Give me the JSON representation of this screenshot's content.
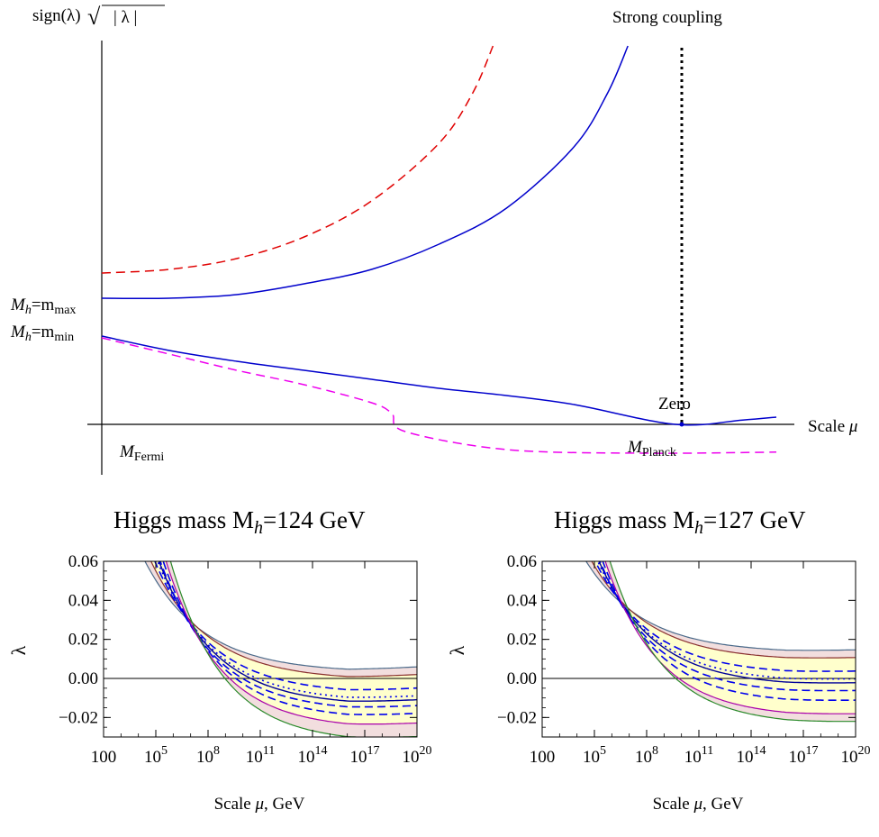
{
  "chart_data": [
    {
      "type": "line",
      "ylabel": "sign(λ)√|λ|",
      "xlabel": "Scale μ",
      "annotations": {
        "strong_coupling": "Strong coupling",
        "zero": "Zero",
        "mh_max_left": "M",
        "mh_max_sub": "h",
        "mh_max_eq": "=m",
        "mh_max_subscript": "max",
        "mh_min_left": "M",
        "mh_min_sub": "h",
        "mh_min_eq": "=m",
        "mh_min_subscript": "min",
        "fermi_main": "M",
        "fermi_sub": "Fermi",
        "planck_main": "M",
        "planck_sub": "Planck"
      },
      "series": [
        {
          "style": "dashed",
          "color": "#e00000",
          "x": [
            0.0,
            0.1,
            0.2,
            0.3,
            0.4,
            0.5,
            0.55,
            0.58
          ],
          "y": [
            0.42,
            0.43,
            0.46,
            0.52,
            0.62,
            0.78,
            0.92,
            1.05
          ]
        },
        {
          "style": "solid",
          "color": "#0000cc",
          "x": [
            0.0,
            0.1,
            0.2,
            0.3,
            0.4,
            0.5,
            0.6,
            0.7,
            0.75,
            0.78
          ],
          "y": [
            0.35,
            0.35,
            0.36,
            0.39,
            0.43,
            0.5,
            0.6,
            0.77,
            0.92,
            1.05
          ]
        },
        {
          "style": "solid",
          "color": "#0000cc",
          "x": [
            0.0,
            0.1,
            0.2,
            0.3,
            0.4,
            0.5,
            0.6,
            0.7,
            0.85,
            0.95,
            1.0
          ],
          "y": [
            0.245,
            0.205,
            0.175,
            0.15,
            0.125,
            0.1,
            0.08,
            0.055,
            0.0,
            0.012,
            0.02
          ]
        },
        {
          "style": "dashed",
          "color": "#ee00ee",
          "x": [
            0.0,
            0.1,
            0.2,
            0.3,
            0.4,
            0.43,
            0.45,
            0.6,
            0.8,
            1.0
          ],
          "y": [
            0.24,
            0.195,
            0.15,
            0.11,
            0.06,
            0.03,
            -0.02,
            -0.07,
            -0.08,
            -0.077
          ]
        }
      ],
      "vertical_marker": {
        "style": "dotted",
        "color": "#000000",
        "x": 0.85
      }
    },
    {
      "type": "line",
      "title_prefix": "Higgs mass M",
      "title_sub": "h",
      "title_suffix": "=124 GeV",
      "xlabel": "Scale μ, GeV",
      "ylabel": "λ",
      "ylim": [
        -0.03,
        0.06
      ],
      "x_ticks": [
        "100",
        "10^5",
        "10^8",
        "10^11",
        "10^14",
        "10^17",
        "10^20"
      ],
      "y_ticks": [
        "0.06",
        "0.04",
        "0.02",
        "0.00",
        "−0.02"
      ],
      "log_x_range": [
        2,
        20
      ],
      "band_colors": {
        "outer": "#f2dede",
        "inner": "#ffffcc"
      },
      "curves": [
        {
          "role": "outer-upper",
          "color": "#4a6a8a",
          "style": "solid",
          "end": 0.003
        },
        {
          "role": "inner-upper",
          "color": "#8a3030",
          "style": "solid",
          "end": -0.001
        },
        {
          "role": "dash",
          "color": "#0000ee",
          "style": "dashed",
          "end": -0.008
        },
        {
          "role": "dot",
          "color": "#0000ee",
          "style": "dotted",
          "end": -0.012
        },
        {
          "role": "central",
          "color": "#000099",
          "style": "solid",
          "end": -0.014
        },
        {
          "role": "dash",
          "color": "#0000ee",
          "style": "dashed",
          "end": -0.017
        },
        {
          "role": "dash",
          "color": "#0000ee",
          "style": "dashed",
          "end": -0.021
        },
        {
          "role": "inner-lower",
          "color": "#aa00aa",
          "style": "solid",
          "end": -0.026
        },
        {
          "role": "outer-lower",
          "color": "#2a8a2a",
          "style": "solid",
          "end": -0.033
        }
      ]
    },
    {
      "type": "line",
      "title_prefix": "Higgs mass M",
      "title_sub": "h",
      "title_suffix": "=127 GeV",
      "xlabel": "Scale μ, GeV",
      "ylabel": "λ",
      "ylim": [
        -0.03,
        0.06
      ],
      "x_ticks": [
        "100",
        "10^5",
        "10^8",
        "10^11",
        "10^14",
        "10^17",
        "10^20"
      ],
      "y_ticks": [
        "0.06",
        "0.04",
        "0.02",
        "0.00",
        "−0.02"
      ],
      "log_x_range": [
        2,
        20
      ],
      "band_colors": {
        "outer": "#f2dede",
        "inner": "#ffffcc"
      },
      "curves": [
        {
          "role": "outer-upper",
          "color": "#4a6a8a",
          "style": "solid",
          "end": 0.013
        },
        {
          "role": "inner-upper",
          "color": "#8a3030",
          "style": "solid",
          "end": 0.009
        },
        {
          "role": "dash",
          "color": "#0000ee",
          "style": "dashed",
          "end": 0.002
        },
        {
          "role": "dot",
          "color": "#0000ee",
          "style": "dotted",
          "end": -0.002
        },
        {
          "role": "central",
          "color": "#000099",
          "style": "solid",
          "end": -0.004
        },
        {
          "role": "dash",
          "color": "#0000ee",
          "style": "dashed",
          "end": -0.008
        },
        {
          "role": "dash",
          "color": "#0000ee",
          "style": "dashed",
          "end": -0.013
        },
        {
          "role": "inner-lower",
          "color": "#aa00aa",
          "style": "solid",
          "end": -0.02
        },
        {
          "role": "outer-lower",
          "color": "#2a8a2a",
          "style": "solid",
          "end": -0.024
        }
      ]
    }
  ]
}
